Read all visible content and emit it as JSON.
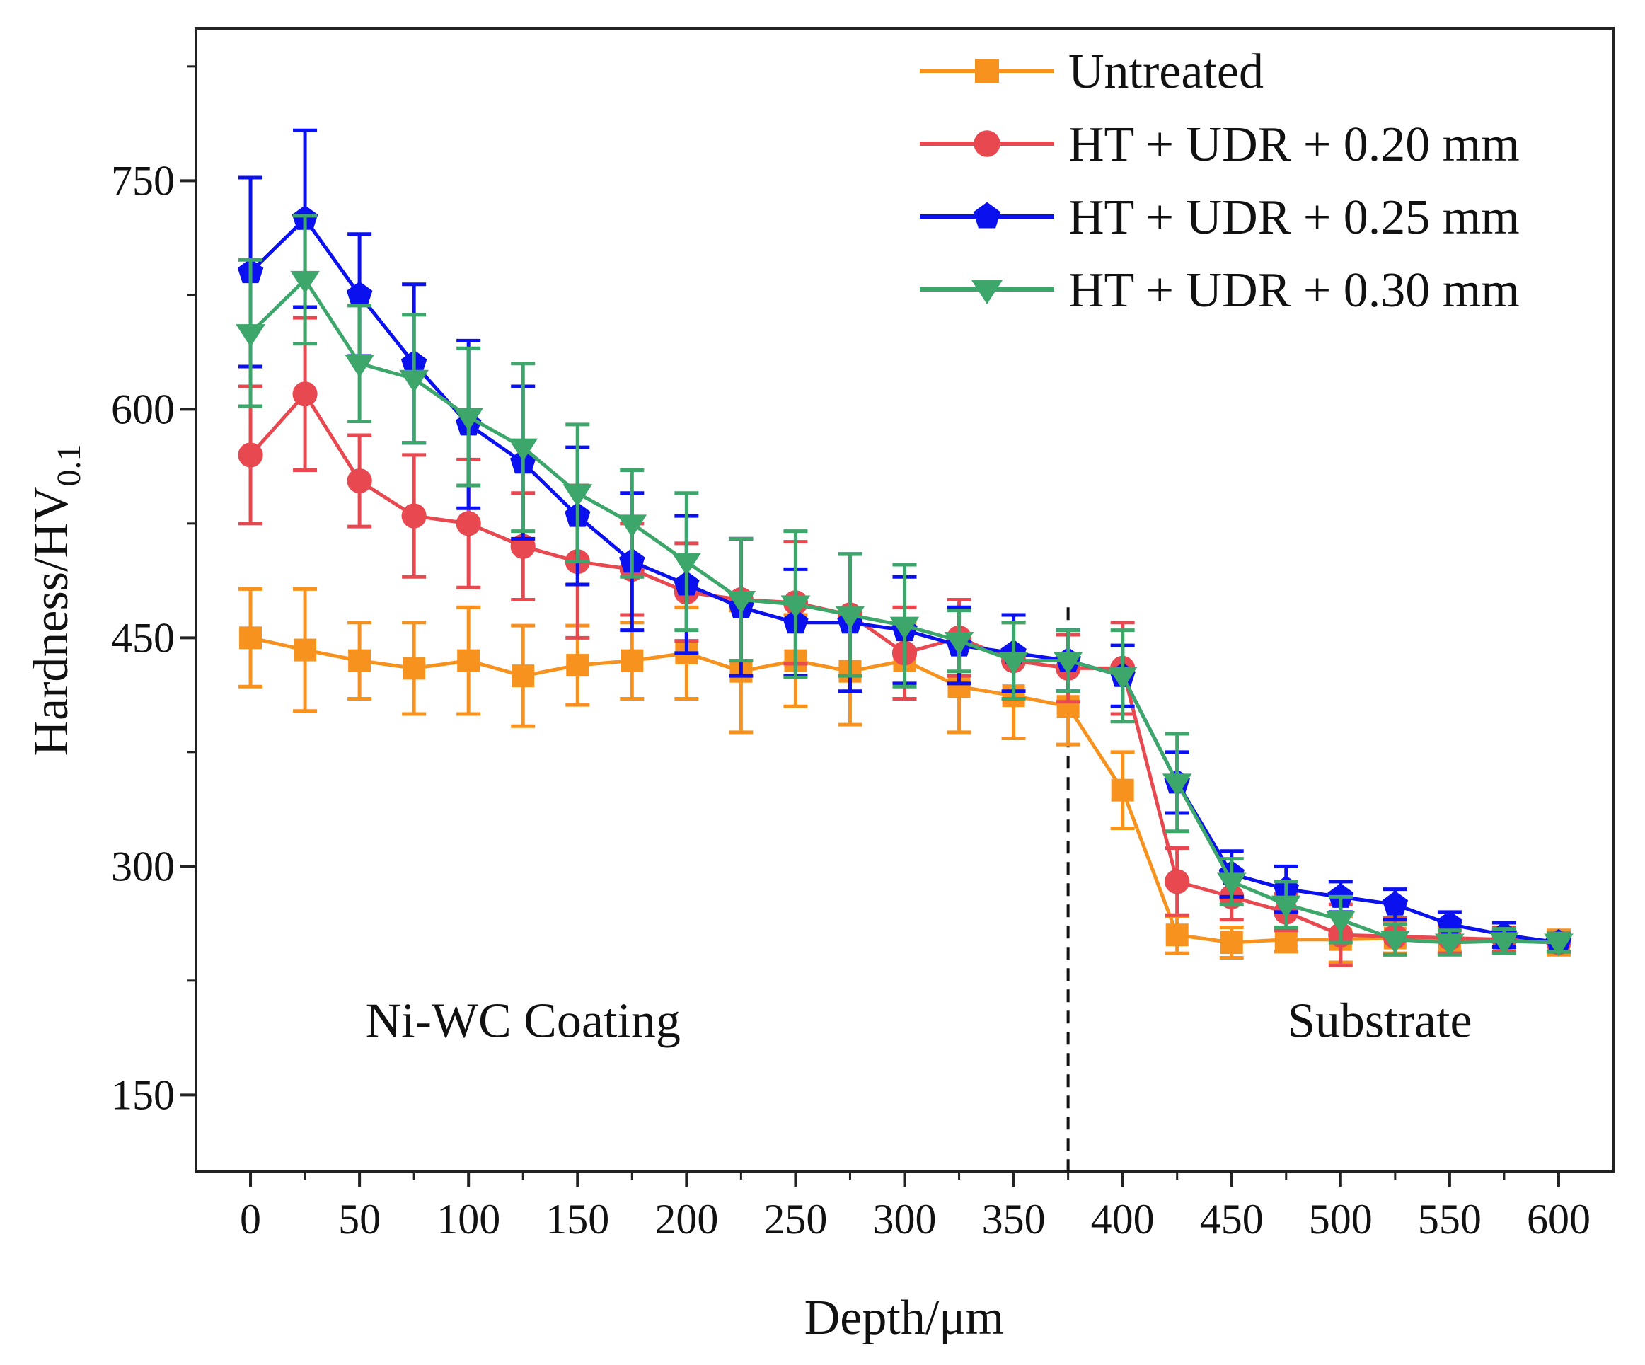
{
  "chart_data": {
    "type": "line",
    "title": "",
    "xlabel": "Depth/μm",
    "ylabel": {
      "main": "Hardness/HV",
      "sub": "0.1"
    },
    "xlim": [
      -25,
      625
    ],
    "ylim": [
      100,
      850
    ],
    "x_ticks": [
      0,
      50,
      100,
      150,
      200,
      250,
      300,
      350,
      400,
      450,
      500,
      550,
      600
    ],
    "y_ticks": [
      150,
      300,
      450,
      600,
      750
    ],
    "x": [
      0,
      25,
      50,
      75,
      100,
      125,
      150,
      175,
      200,
      225,
      250,
      275,
      300,
      325,
      350,
      375,
      400,
      425,
      450,
      475,
      500,
      525,
      550,
      575,
      600
    ],
    "legend_position": "top-right",
    "boundary": {
      "x": 375,
      "style": "dashed"
    },
    "annotations": [
      {
        "text": "Ni-WC Coating",
        "x": 125,
        "y": 188
      },
      {
        "text": "Substrate",
        "x": 518,
        "y": 188
      }
    ],
    "series": [
      {
        "name": "Untreated",
        "color": "#f7921e",
        "marker": "square",
        "values": [
          450,
          442,
          435,
          430,
          435,
          425,
          432,
          435,
          440,
          428,
          435,
          428,
          435,
          418,
          412,
          405,
          350,
          255,
          250,
          252,
          252,
          253,
          252,
          251,
          250
        ],
        "errors": [
          32,
          40,
          25,
          30,
          35,
          33,
          26,
          25,
          30,
          40,
          30,
          35,
          25,
          30,
          28,
          25,
          25,
          12,
          10,
          8,
          15,
          10,
          8,
          8,
          8
        ]
      },
      {
        "name": "HT + UDR + 0.20 mm",
        "color": "#e8484f",
        "marker": "circle",
        "values": [
          570,
          610,
          553,
          530,
          525,
          510,
          500,
          495,
          480,
          475,
          473,
          465,
          440,
          450,
          435,
          430,
          430,
          290,
          280,
          270,
          255,
          254,
          253,
          252,
          250
        ],
        "errors": [
          45,
          50,
          30,
          40,
          42,
          35,
          50,
          30,
          32,
          40,
          40,
          40,
          30,
          25,
          25,
          22,
          30,
          22,
          15,
          12,
          20,
          12,
          10,
          8,
          6
        ]
      },
      {
        "name": "HT + UDR + 0.25 mm",
        "color": "#0a10ee",
        "marker": "pentagon",
        "values": [
          690,
          725,
          675,
          630,
          590,
          565,
          530,
          500,
          485,
          470,
          460,
          460,
          455,
          445,
          440,
          435,
          425,
          355,
          295,
          285,
          280,
          275,
          262,
          255,
          250
        ],
        "errors": [
          62,
          58,
          40,
          52,
          55,
          50,
          45,
          45,
          45,
          45,
          35,
          45,
          35,
          25,
          25,
          20,
          20,
          20,
          15,
          15,
          10,
          10,
          8,
          8,
          6
        ]
      },
      {
        "name": "HT + UDR + 0.30 mm",
        "color": "#3da66a",
        "marker": "triangle-down",
        "values": [
          650,
          685,
          630,
          620,
          595,
          575,
          545,
          525,
          500,
          475,
          472,
          465,
          458,
          448,
          435,
          435,
          425,
          355,
          290,
          275,
          265,
          252,
          250,
          251,
          250
        ],
        "errors": [
          48,
          42,
          38,
          42,
          45,
          55,
          45,
          35,
          45,
          40,
          48,
          40,
          40,
          20,
          25,
          20,
          30,
          32,
          15,
          15,
          15,
          10,
          8,
          8,
          6
        ]
      }
    ]
  }
}
